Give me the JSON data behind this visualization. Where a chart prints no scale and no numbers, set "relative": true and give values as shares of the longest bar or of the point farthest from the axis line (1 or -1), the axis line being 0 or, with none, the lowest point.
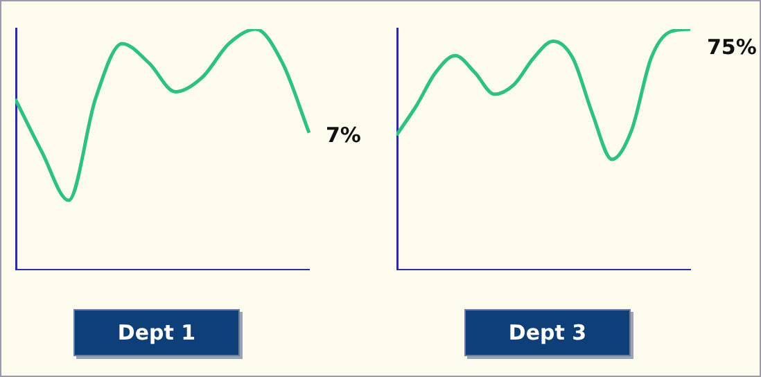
{
  "chart_data": [
    {
      "type": "line",
      "xlabel": "Dept 1",
      "relative": true,
      "categories": [
        null,
        null,
        null,
        null,
        null,
        null,
        null,
        null,
        null,
        null,
        null,
        null
      ],
      "series": [
        {
          "color": "#2ec27e",
          "values": [
            0.71,
            0.49,
            0.29,
            0.71,
            0.94,
            0.86,
            0.74,
            0.8,
            0.94,
            1,
            0.86,
            0.57
          ]
        }
      ],
      "annotations": [
        "7%"
      ],
      "grid": false,
      "legend": false,
      "tick_labels": false,
      "marker": "none"
    },
    {
      "type": "line",
      "xlabel": "Dept 3",
      "relative": true,
      "categories": [
        null,
        null,
        null,
        null,
        null,
        null,
        null,
        null,
        null,
        null,
        null,
        null,
        null,
        null,
        null,
        null
      ],
      "series": [
        {
          "color": "#2ec27e",
          "values": [
            0.56,
            0.68,
            0.82,
            0.89,
            0.82,
            0.73,
            0.77,
            0.88,
            0.95,
            0.88,
            0.65,
            0.46,
            0.58,
            0.88,
            0.99,
            1
          ]
        }
      ],
      "annotations": [
        "75%"
      ],
      "grid": false,
      "legend": false,
      "tick_labels": false,
      "marker": "none"
    }
  ]
}
